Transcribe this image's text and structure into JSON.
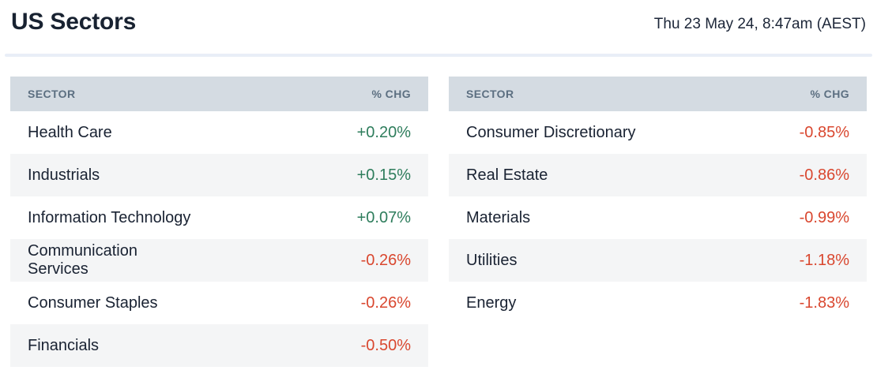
{
  "header": {
    "title": "US Sectors",
    "timestamp": "Thu 23 May 24, 8:47am (AEST)"
  },
  "columns": {
    "sector": "SECTOR",
    "chg": "% CHG"
  },
  "tables": {
    "left": {
      "rows": [
        {
          "sector": "Health Care",
          "chg": "+0.20%",
          "direction": "up"
        },
        {
          "sector": "Industrials",
          "chg": "+0.15%",
          "direction": "up"
        },
        {
          "sector": "Information Technology",
          "chg": "+0.07%",
          "direction": "up"
        },
        {
          "sector": "Communication Services",
          "chg": "-0.26%",
          "direction": "down"
        },
        {
          "sector": "Consumer Staples",
          "chg": "-0.26%",
          "direction": "down"
        },
        {
          "sector": "Financials",
          "chg": "-0.50%",
          "direction": "down"
        }
      ]
    },
    "right": {
      "rows": [
        {
          "sector": "Consumer Discretionary",
          "chg": "-0.85%",
          "direction": "down"
        },
        {
          "sector": "Real Estate",
          "chg": "-0.86%",
          "direction": "down"
        },
        {
          "sector": "Materials",
          "chg": "-0.99%",
          "direction": "down"
        },
        {
          "sector": "Utilities",
          "chg": "-1.18%",
          "direction": "down"
        },
        {
          "sector": "Energy",
          "chg": "-1.83%",
          "direction": "down"
        }
      ]
    }
  },
  "colors": {
    "positive": "#2e7d5c",
    "negative": "#d9472f",
    "header_bg": "#d4dbe2",
    "header_text": "#5c6f81",
    "stripe": "#f4f5f6",
    "text": "#192232",
    "divider": "#e9eef7"
  },
  "chart_data": {
    "type": "table",
    "title": "US Sectors",
    "timestamp": "Thu 23 May 24, 8:47am (AEST)",
    "columns": [
      "SECTOR",
      "% CHG"
    ],
    "rows": [
      [
        "Health Care",
        0.2
      ],
      [
        "Industrials",
        0.15
      ],
      [
        "Information Technology",
        0.07
      ],
      [
        "Communication Services",
        -0.26
      ],
      [
        "Consumer Staples",
        -0.26
      ],
      [
        "Financials",
        -0.5
      ],
      [
        "Consumer Discretionary",
        -0.85
      ],
      [
        "Real Estate",
        -0.86
      ],
      [
        "Materials",
        -0.99
      ],
      [
        "Utilities",
        -1.18
      ],
      [
        "Energy",
        -1.83
      ]
    ],
    "value_unit": "percent_change",
    "positive_color": "#2e7d5c",
    "negative_color": "#d9472f",
    "layout": "two side-by-side tables, left table rows 1-6, right table rows 7-11, zebra striping on even rows"
  }
}
